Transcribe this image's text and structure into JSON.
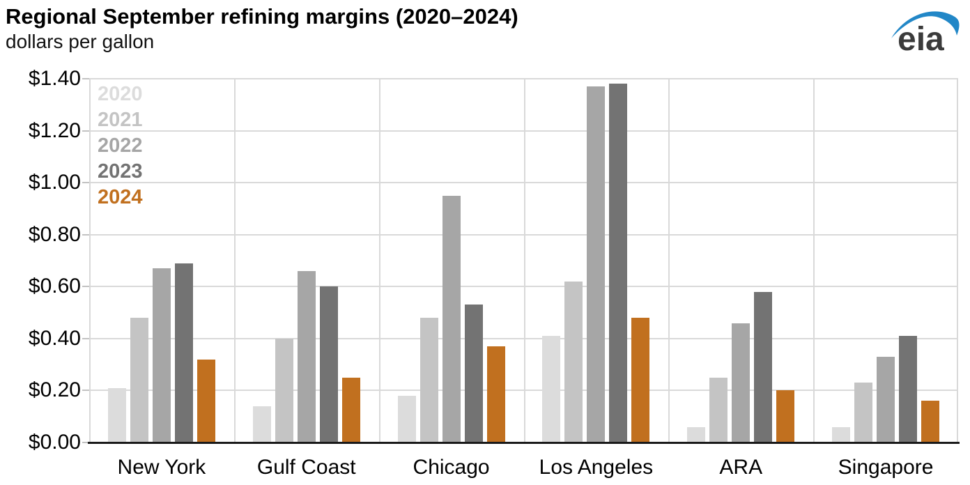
{
  "header": {
    "title": "Regional September refining margins (2020–2024)",
    "subtitle": "dollars per gallon",
    "logo_text": "eia"
  },
  "chart_data": {
    "type": "bar",
    "title": "Regional September refining margins (2020–2024)",
    "ylabel": "dollars per gallon",
    "ylim": [
      0,
      1.4
    ],
    "grid": true,
    "legend_position": "upper-left-inside",
    "yticks": [
      {
        "value": 0.0,
        "label": "$0.00"
      },
      {
        "value": 0.2,
        "label": "$0.20"
      },
      {
        "value": 0.4,
        "label": "$0.40"
      },
      {
        "value": 0.6,
        "label": "$0.60"
      },
      {
        "value": 0.8,
        "label": "$0.80"
      },
      {
        "value": 1.0,
        "label": "$1.00"
      },
      {
        "value": 1.2,
        "label": "$1.20"
      },
      {
        "value": 1.4,
        "label": "$1.40"
      }
    ],
    "categories": [
      "New York",
      "Gulf Coast",
      "Chicago",
      "Los Angeles",
      "ARA",
      "Singapore"
    ],
    "series": [
      {
        "name": "2020",
        "color": "#dcdcdc",
        "values": [
          0.21,
          0.14,
          0.18,
          0.41,
          0.06,
          0.06
        ]
      },
      {
        "name": "2021",
        "color": "#c4c4c4",
        "values": [
          0.48,
          0.4,
          0.48,
          0.62,
          0.25,
          0.23
        ]
      },
      {
        "name": "2022",
        "color": "#a6a6a6",
        "values": [
          0.67,
          0.66,
          0.95,
          1.37,
          0.46,
          0.33
        ]
      },
      {
        "name": "2023",
        "color": "#737373",
        "values": [
          0.69,
          0.6,
          0.53,
          1.38,
          0.58,
          0.41
        ]
      },
      {
        "name": "2024",
        "color": "#c1701f",
        "values": [
          0.32,
          0.25,
          0.37,
          0.48,
          0.2,
          0.16
        ]
      }
    ]
  },
  "colors": {
    "axis": "#1a1a1a",
    "grid": "#d9d9d9",
    "logo_blue": "#2287c7",
    "logo_text": "#3b3b3b"
  }
}
